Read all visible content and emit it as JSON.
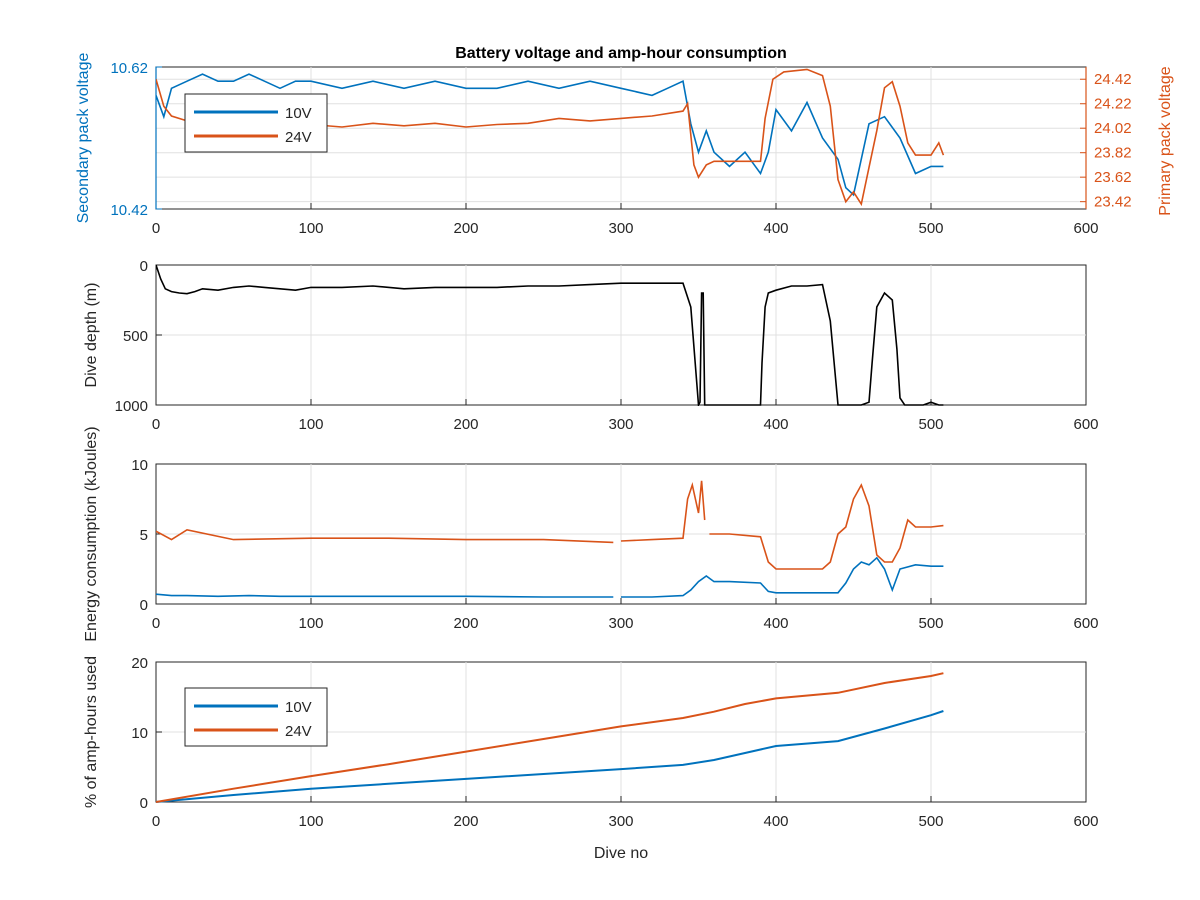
{
  "figure_title": "Battery voltage and amp-hour consumption",
  "colors": {
    "blue": "#0072BD",
    "orange": "#D95319",
    "black": "#000000",
    "axis": "#262626"
  },
  "chart_data": [
    {
      "type": "line",
      "id": "voltage",
      "title": "Battery voltage and amp-hour consumption",
      "xlabel": "",
      "ylabel_left": "Secondary pack voltage",
      "ylabel_right": "Primary pack voltage",
      "xlim": [
        0,
        600
      ],
      "ylim_left": [
        10.42,
        10.62
      ],
      "ylim_right": [
        23.36,
        24.52
      ],
      "xticks": [
        0,
        100,
        200,
        300,
        400,
        500,
        600
      ],
      "yticks_left": [
        "10.42",
        "10.62"
      ],
      "yticks_right": [
        "23.42",
        "23.62",
        "23.82",
        "24.02",
        "24.22",
        "24.42"
      ],
      "grid": true,
      "legend": {
        "position": "top-left",
        "entries": [
          "10V",
          "24V"
        ]
      },
      "series": [
        {
          "name": "10V",
          "axis": "left",
          "x": [
            0,
            5,
            10,
            20,
            30,
            40,
            50,
            60,
            70,
            80,
            90,
            100,
            120,
            140,
            160,
            180,
            200,
            220,
            240,
            260,
            280,
            300,
            320,
            330,
            340,
            345,
            350,
            355,
            360,
            370,
            380,
            390,
            395,
            400,
            410,
            420,
            430,
            440,
            445,
            450,
            460,
            470,
            480,
            490,
            500,
            508
          ],
          "y": [
            10.58,
            10.55,
            10.59,
            10.6,
            10.61,
            10.6,
            10.6,
            10.61,
            10.6,
            10.59,
            10.6,
            10.6,
            10.59,
            10.6,
            10.59,
            10.6,
            10.59,
            10.59,
            10.6,
            10.59,
            10.6,
            10.59,
            10.58,
            10.59,
            10.6,
            10.54,
            10.5,
            10.53,
            10.5,
            10.48,
            10.5,
            10.47,
            10.5,
            10.56,
            10.53,
            10.57,
            10.52,
            10.49,
            10.45,
            10.44,
            10.54,
            10.55,
            10.52,
            10.47,
            10.48,
            10.48
          ]
        },
        {
          "name": "24V",
          "axis": "right",
          "x": [
            0,
            5,
            10,
            20,
            40,
            60,
            80,
            100,
            120,
            140,
            160,
            180,
            200,
            220,
            240,
            260,
            280,
            300,
            320,
            340,
            343,
            347,
            350,
            355,
            360,
            370,
            380,
            390,
            393,
            398,
            405,
            420,
            430,
            435,
            440,
            445,
            450,
            455,
            460,
            465,
            470,
            475,
            480,
            485,
            490,
            500,
            505,
            508
          ],
          "y": [
            24.42,
            24.2,
            24.12,
            24.08,
            24.04,
            24.06,
            24.04,
            24.05,
            24.03,
            24.06,
            24.04,
            24.06,
            24.03,
            24.05,
            24.06,
            24.1,
            24.08,
            24.1,
            24.12,
            24.16,
            24.22,
            23.72,
            23.62,
            23.72,
            23.75,
            23.75,
            23.75,
            23.75,
            24.1,
            24.42,
            24.48,
            24.5,
            24.45,
            24.2,
            23.6,
            23.42,
            23.5,
            23.4,
            23.7,
            24.0,
            24.35,
            24.4,
            24.2,
            23.9,
            23.8,
            23.8,
            23.9,
            23.8
          ]
        }
      ]
    },
    {
      "type": "line",
      "id": "depth",
      "title": "",
      "xlabel": "",
      "ylabel": "Dive depth (m)",
      "xlim": [
        0,
        600
      ],
      "ylim": [
        0,
        1000
      ],
      "y_reversed": true,
      "xticks": [
        0,
        100,
        200,
        300,
        400,
        500,
        600
      ],
      "yticks": [
        "0",
        "500",
        "1000"
      ],
      "grid": true,
      "series": [
        {
          "name": "",
          "color": "black",
          "x": [
            0,
            3,
            6,
            10,
            15,
            20,
            25,
            30,
            40,
            50,
            60,
            70,
            80,
            90,
            100,
            120,
            140,
            160,
            180,
            200,
            220,
            240,
            260,
            280,
            300,
            320,
            340,
            345,
            350,
            351,
            352,
            353,
            354,
            355,
            360,
            370,
            380,
            390,
            391,
            393,
            395,
            400,
            410,
            420,
            430,
            435,
            440,
            445,
            450,
            455,
            460,
            462,
            465,
            470,
            475,
            478,
            480,
            483,
            486,
            490,
            495,
            500,
            505,
            508
          ],
          "y": [
            0,
            100,
            170,
            190,
            200,
            205,
            190,
            170,
            180,
            160,
            150,
            160,
            170,
            180,
            160,
            160,
            150,
            170,
            160,
            160,
            160,
            150,
            150,
            140,
            130,
            130,
            130,
            300,
            1000,
            980,
            200,
            200,
            1000,
            1000,
            1000,
            1000,
            1000,
            1000,
            700,
            300,
            200,
            180,
            150,
            150,
            140,
            400,
            1000,
            1000,
            1000,
            1000,
            980,
            700,
            300,
            200,
            250,
            600,
            950,
            1000,
            1000,
            1000,
            1000,
            980,
            1000,
            1000
          ]
        }
      ]
    },
    {
      "type": "line",
      "id": "energy",
      "title": "",
      "xlabel": "",
      "ylabel": "Energy consumption (kJoules)",
      "xlim": [
        0,
        600
      ],
      "ylim": [
        0,
        10
      ],
      "xticks": [
        0,
        100,
        200,
        300,
        400,
        500,
        600
      ],
      "yticks": [
        "0",
        "5",
        "10"
      ],
      "grid": true,
      "series": [
        {
          "name": "10V",
          "color": "blue",
          "segments": [
            {
              "x": [
                0,
                10,
                20,
                40,
                60,
                80,
                100,
                150,
                200,
                250,
                295
              ],
              "y": [
                0.7,
                0.6,
                0.6,
                0.55,
                0.6,
                0.55,
                0.55,
                0.55,
                0.55,
                0.5,
                0.5
              ]
            },
            {
              "x": [
                300,
                320,
                340,
                345,
                350,
                355,
                360,
                370,
                390,
                395,
                400,
                420,
                440,
                445,
                450,
                455,
                460,
                465,
                470,
                475,
                480,
                490,
                500,
                508
              ],
              "y": [
                0.5,
                0.5,
                0.6,
                1.0,
                1.6,
                2.0,
                1.6,
                1.6,
                1.5,
                0.9,
                0.8,
                0.8,
                0.8,
                1.5,
                2.5,
                3.0,
                2.8,
                3.3,
                2.5,
                1.0,
                2.5,
                2.8,
                2.7,
                2.7
              ]
            }
          ]
        },
        {
          "name": "24V",
          "color": "orange",
          "segments": [
            {
              "x": [
                0,
                10,
                20,
                50,
                100,
                150,
                200,
                250,
                295
              ],
              "y": [
                5.2,
                4.6,
                5.3,
                4.6,
                4.7,
                4.7,
                4.6,
                4.6,
                4.4
              ]
            },
            {
              "x": [
                300,
                320,
                340,
                343,
                346,
                350,
                352,
                354
              ],
              "y": [
                4.5,
                4.6,
                4.7,
                7.5,
                8.5,
                6.5,
                8.8,
                6.0
              ]
            },
            {
              "x": [
                357,
                370,
                390,
                395,
                400,
                420,
                430,
                435,
                440,
                445,
                450,
                455,
                460,
                465,
                470,
                475,
                480,
                485,
                490,
                500,
                508
              ],
              "y": [
                5.0,
                5.0,
                4.8,
                3.0,
                2.5,
                2.5,
                2.5,
                3.0,
                5.0,
                5.5,
                7.5,
                8.5,
                7.0,
                3.5,
                3.0,
                3.0,
                4.0,
                6.0,
                5.5,
                5.5,
                5.6
              ]
            }
          ]
        }
      ]
    },
    {
      "type": "line",
      "id": "amphours",
      "title": "",
      "xlabel": "Dive no",
      "ylabel": "% of amp-hours used",
      "xlim": [
        0,
        600
      ],
      "ylim": [
        0,
        20
      ],
      "xticks": [
        0,
        100,
        200,
        300,
        400,
        500,
        600
      ],
      "yticks": [
        "0",
        "10",
        "20"
      ],
      "grid": true,
      "legend": {
        "position": "top-left",
        "entries": [
          "10V",
          "24V"
        ]
      },
      "series": [
        {
          "name": "10V",
          "color": "blue",
          "x": [
            0,
            50,
            100,
            150,
            200,
            250,
            300,
            340,
            360,
            380,
            400,
            440,
            470,
            500,
            508
          ],
          "y": [
            0,
            1.0,
            1.9,
            2.6,
            3.3,
            4.0,
            4.7,
            5.3,
            6.0,
            7.0,
            8.0,
            8.7,
            10.5,
            12.4,
            13.0
          ]
        },
        {
          "name": "24V",
          "color": "orange",
          "x": [
            0,
            50,
            100,
            150,
            200,
            250,
            300,
            340,
            360,
            380,
            400,
            440,
            470,
            500,
            508
          ],
          "y": [
            0,
            1.9,
            3.7,
            5.4,
            7.2,
            9.0,
            10.8,
            12.0,
            12.9,
            14.0,
            14.8,
            15.6,
            17.0,
            18.0,
            18.4
          ]
        }
      ]
    }
  ]
}
